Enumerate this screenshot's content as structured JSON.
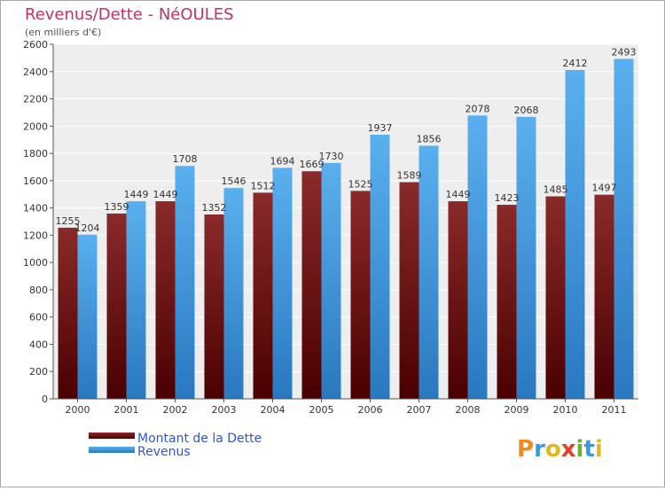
{
  "chart_data": {
    "type": "bar",
    "title": "Revenus/Dette - NéOULES",
    "subtitle": "(en milliers d'€)",
    "categories": [
      "2000",
      "2001",
      "2002",
      "2003",
      "2004",
      "2005",
      "2006",
      "2007",
      "2008",
      "2009",
      "2010",
      "2011"
    ],
    "series": [
      {
        "name": "Montant de la Dette",
        "color": "#7a1a1a",
        "values": [
          1255,
          1359,
          1449,
          1352,
          1512,
          1669,
          1525,
          1589,
          1449,
          1423,
          1485,
          1497
        ]
      },
      {
        "name": "Revenus",
        "color": "#4aa3e2",
        "values": [
          1204,
          1449,
          1708,
          1546,
          1694,
          1730,
          1937,
          1856,
          2078,
          2068,
          2412,
          2493
        ]
      }
    ],
    "ylim": [
      0,
      2600
    ],
    "yticks": [
      0,
      200,
      400,
      600,
      800,
      1000,
      1200,
      1400,
      1600,
      1800,
      2000,
      2200,
      2400,
      2600
    ],
    "grid": true,
    "legend_position": "bottom-left"
  },
  "logo": {
    "text": "Proxiti"
  },
  "colors": {
    "title": "#c0306a",
    "legend_text": "#3355cc",
    "background": "#ffffff",
    "plot_background": "#eeeeee",
    "grid": "#ffffff"
  }
}
